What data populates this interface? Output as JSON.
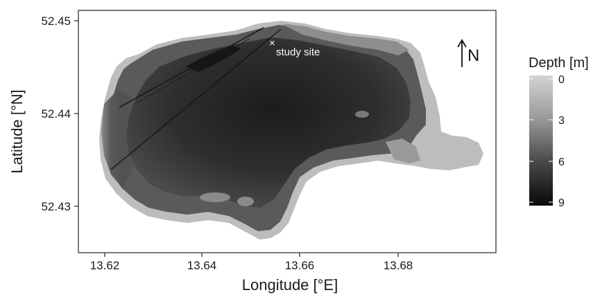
{
  "map": {
    "x_axis": {
      "label": "Longitude [°E]",
      "ticks": [
        "13.62",
        "13.64",
        "13.66",
        "13.68"
      ]
    },
    "y_axis": {
      "label": "Latitude [°N]",
      "ticks": [
        "52.45",
        "52.44",
        "52.43"
      ]
    },
    "annotation": {
      "marker": "×",
      "label": "study site"
    },
    "north_arrow": {
      "label": "N",
      "icon": "north-arrow-icon"
    },
    "legend": {
      "title": "Depth [m]",
      "ticks": [
        "0",
        "3",
        "6",
        "9"
      ],
      "color_low": "#d2d2d2",
      "color_high": "#0a0a0a"
    },
    "colors": {
      "shallow": "#c8c8c8",
      "mid": "#6a6a6a",
      "deep": "#2a2a2a",
      "deepest": "#0f0f0f"
    }
  }
}
